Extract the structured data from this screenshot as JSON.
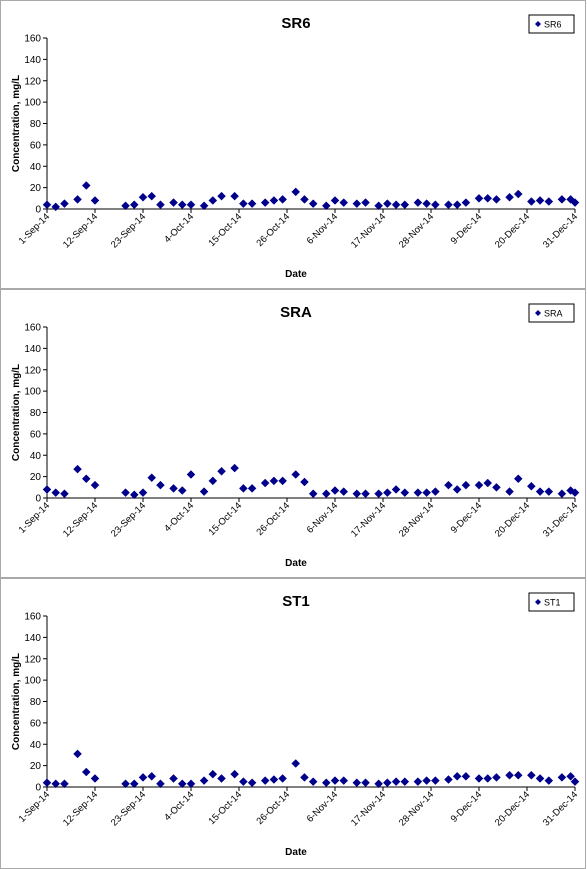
{
  "chart_data": [
    {
      "type": "scatter",
      "title": "SR6",
      "xlabel": "Date",
      "ylabel": "Concentration, mg/L",
      "ylim": [
        0,
        160
      ],
      "yticks": [
        0,
        20,
        40,
        60,
        80,
        100,
        120,
        140,
        160
      ],
      "xlim": [
        "2014-09-01",
        "2014-12-31"
      ],
      "xticks": [
        "1-Sep-14",
        "12-Sep-14",
        "23-Sep-14",
        "4-Oct-14",
        "15-Oct-14",
        "26-Oct-14",
        "6-Nov-14",
        "17-Nov-14",
        "28-Nov-14",
        "9-Dec-14",
        "20-Dec-14",
        "31-Dec-14"
      ],
      "grid": false,
      "legend": "top-right",
      "series": [
        {
          "name": "SR6",
          "color": "#00008b",
          "marker": "diamond",
          "points": [
            [
              "2014-09-01",
              4
            ],
            [
              "2014-09-03",
              2
            ],
            [
              "2014-09-05",
              5
            ],
            [
              "2014-09-08",
              9
            ],
            [
              "2014-09-10",
              22
            ],
            [
              "2014-09-12",
              8
            ],
            [
              "2014-09-19",
              3
            ],
            [
              "2014-09-21",
              4
            ],
            [
              "2014-09-23",
              11
            ],
            [
              "2014-09-25",
              12
            ],
            [
              "2014-09-27",
              4
            ],
            [
              "2014-09-30",
              6
            ],
            [
              "2014-10-02",
              4
            ],
            [
              "2014-10-04",
              4
            ],
            [
              "2014-10-07",
              3
            ],
            [
              "2014-10-09",
              8
            ],
            [
              "2014-10-11",
              12
            ],
            [
              "2014-10-14",
              12
            ],
            [
              "2014-10-16",
              5
            ],
            [
              "2014-10-18",
              5
            ],
            [
              "2014-10-21",
              6
            ],
            [
              "2014-10-23",
              8
            ],
            [
              "2014-10-25",
              9
            ],
            [
              "2014-10-28",
              16
            ],
            [
              "2014-10-30",
              9
            ],
            [
              "2014-11-01",
              5
            ],
            [
              "2014-11-04",
              3
            ],
            [
              "2014-11-06",
              8
            ],
            [
              "2014-11-08",
              6
            ],
            [
              "2014-11-11",
              5
            ],
            [
              "2014-11-13",
              6
            ],
            [
              "2014-11-16",
              3
            ],
            [
              "2014-11-18",
              5
            ],
            [
              "2014-11-20",
              4
            ],
            [
              "2014-11-22",
              4
            ],
            [
              "2014-11-25",
              6
            ],
            [
              "2014-11-27",
              5
            ],
            [
              "2014-11-29",
              4
            ],
            [
              "2014-12-02",
              4
            ],
            [
              "2014-12-04",
              4
            ],
            [
              "2014-12-06",
              6
            ],
            [
              "2014-12-09",
              10
            ],
            [
              "2014-12-11",
              10
            ],
            [
              "2014-12-13",
              9
            ],
            [
              "2014-12-16",
              11
            ],
            [
              "2014-12-18",
              14
            ],
            [
              "2014-12-21",
              7
            ],
            [
              "2014-12-23",
              8
            ],
            [
              "2014-12-25",
              7
            ],
            [
              "2014-12-28",
              9
            ],
            [
              "2014-12-30",
              9
            ],
            [
              "2014-12-31",
              6
            ]
          ]
        }
      ]
    },
    {
      "type": "scatter",
      "title": "SRA",
      "xlabel": "Date",
      "ylabel": "Concentration, mg/L",
      "ylim": [
        0,
        160
      ],
      "yticks": [
        0,
        20,
        40,
        60,
        80,
        100,
        120,
        140,
        160
      ],
      "xlim": [
        "2014-09-01",
        "2014-12-31"
      ],
      "xticks": [
        "1-Sep-14",
        "12-Sep-14",
        "23-Sep-14",
        "4-Oct-14",
        "15-Oct-14",
        "26-Oct-14",
        "6-Nov-14",
        "17-Nov-14",
        "28-Nov-14",
        "9-Dec-14",
        "20-Dec-14",
        "31-Dec-14"
      ],
      "grid": false,
      "legend": "top-right",
      "series": [
        {
          "name": "SRA",
          "color": "#00008b",
          "marker": "diamond",
          "points": [
            [
              "2014-09-01",
              8
            ],
            [
              "2014-09-03",
              5
            ],
            [
              "2014-09-05",
              4
            ],
            [
              "2014-09-08",
              27
            ],
            [
              "2014-09-10",
              18
            ],
            [
              "2014-09-12",
              12
            ],
            [
              "2014-09-19",
              5
            ],
            [
              "2014-09-21",
              3
            ],
            [
              "2014-09-23",
              5
            ],
            [
              "2014-09-25",
              19
            ],
            [
              "2014-09-27",
              12
            ],
            [
              "2014-09-30",
              9
            ],
            [
              "2014-10-02",
              7
            ],
            [
              "2014-10-04",
              22
            ],
            [
              "2014-10-07",
              6
            ],
            [
              "2014-10-09",
              16
            ],
            [
              "2014-10-11",
              25
            ],
            [
              "2014-10-14",
              28
            ],
            [
              "2014-10-16",
              9
            ],
            [
              "2014-10-18",
              9
            ],
            [
              "2014-10-21",
              14
            ],
            [
              "2014-10-23",
              16
            ],
            [
              "2014-10-25",
              16
            ],
            [
              "2014-10-28",
              22
            ],
            [
              "2014-10-30",
              15
            ],
            [
              "2014-11-01",
              4
            ],
            [
              "2014-11-04",
              4
            ],
            [
              "2014-11-06",
              7
            ],
            [
              "2014-11-08",
              6
            ],
            [
              "2014-11-11",
              4
            ],
            [
              "2014-11-13",
              4
            ],
            [
              "2014-11-16",
              4
            ],
            [
              "2014-11-18",
              5
            ],
            [
              "2014-11-20",
              8
            ],
            [
              "2014-11-22",
              5
            ],
            [
              "2014-11-25",
              5
            ],
            [
              "2014-11-27",
              5
            ],
            [
              "2014-11-29",
              6
            ],
            [
              "2014-12-02",
              12
            ],
            [
              "2014-12-04",
              8
            ],
            [
              "2014-12-06",
              12
            ],
            [
              "2014-12-09",
              12
            ],
            [
              "2014-12-11",
              14
            ],
            [
              "2014-12-13",
              10
            ],
            [
              "2014-12-16",
              6
            ],
            [
              "2014-12-18",
              18
            ],
            [
              "2014-12-21",
              11
            ],
            [
              "2014-12-23",
              6
            ],
            [
              "2014-12-25",
              6
            ],
            [
              "2014-12-28",
              4
            ],
            [
              "2014-12-30",
              7
            ],
            [
              "2014-12-31",
              5
            ]
          ]
        }
      ]
    },
    {
      "type": "scatter",
      "title": "ST1",
      "xlabel": "Date",
      "ylabel": "Concentration, mg/L",
      "ylim": [
        0,
        160
      ],
      "yticks": [
        0,
        20,
        40,
        60,
        80,
        100,
        120,
        140,
        160
      ],
      "xlim": [
        "2014-09-01",
        "2014-12-31"
      ],
      "xticks": [
        "1-Sep-14",
        "12-Sep-14",
        "23-Sep-14",
        "4-Oct-14",
        "15-Oct-14",
        "26-Oct-14",
        "6-Nov-14",
        "17-Nov-14",
        "28-Nov-14",
        "9-Dec-14",
        "20-Dec-14",
        "31-Dec-14"
      ],
      "grid": false,
      "legend": "top-right",
      "series": [
        {
          "name": "ST1",
          "color": "#00008b",
          "marker": "diamond",
          "points": [
            [
              "2014-09-01",
              4
            ],
            [
              "2014-09-03",
              3
            ],
            [
              "2014-09-05",
              3
            ],
            [
              "2014-09-08",
              31
            ],
            [
              "2014-09-10",
              14
            ],
            [
              "2014-09-12",
              8
            ],
            [
              "2014-09-19",
              3
            ],
            [
              "2014-09-21",
              3
            ],
            [
              "2014-09-23",
              9
            ],
            [
              "2014-09-25",
              10
            ],
            [
              "2014-09-27",
              3
            ],
            [
              "2014-09-30",
              8
            ],
            [
              "2014-10-02",
              3
            ],
            [
              "2014-10-04",
              3
            ],
            [
              "2014-10-07",
              6
            ],
            [
              "2014-10-09",
              12
            ],
            [
              "2014-10-11",
              8
            ],
            [
              "2014-10-14",
              12
            ],
            [
              "2014-10-16",
              5
            ],
            [
              "2014-10-18",
              4
            ],
            [
              "2014-10-21",
              6
            ],
            [
              "2014-10-23",
              7
            ],
            [
              "2014-10-25",
              8
            ],
            [
              "2014-10-28",
              22
            ],
            [
              "2014-10-30",
              9
            ],
            [
              "2014-11-01",
              5
            ],
            [
              "2014-11-04",
              4
            ],
            [
              "2014-11-06",
              6
            ],
            [
              "2014-11-08",
              6
            ],
            [
              "2014-11-11",
              4
            ],
            [
              "2014-11-13",
              4
            ],
            [
              "2014-11-16",
              3
            ],
            [
              "2014-11-18",
              4
            ],
            [
              "2014-11-20",
              5
            ],
            [
              "2014-11-22",
              5
            ],
            [
              "2014-11-25",
              5
            ],
            [
              "2014-11-27",
              6
            ],
            [
              "2014-11-29",
              6
            ],
            [
              "2014-12-02",
              7
            ],
            [
              "2014-12-04",
              10
            ],
            [
              "2014-12-06",
              10
            ],
            [
              "2014-12-09",
              8
            ],
            [
              "2014-12-11",
              8
            ],
            [
              "2014-12-13",
              9
            ],
            [
              "2014-12-16",
              11
            ],
            [
              "2014-12-18",
              11
            ],
            [
              "2014-12-21",
              11
            ],
            [
              "2014-12-23",
              8
            ],
            [
              "2014-12-25",
              6
            ],
            [
              "2014-12-28",
              9
            ],
            [
              "2014-12-30",
              10
            ],
            [
              "2014-12-31",
              5
            ]
          ]
        }
      ]
    }
  ]
}
